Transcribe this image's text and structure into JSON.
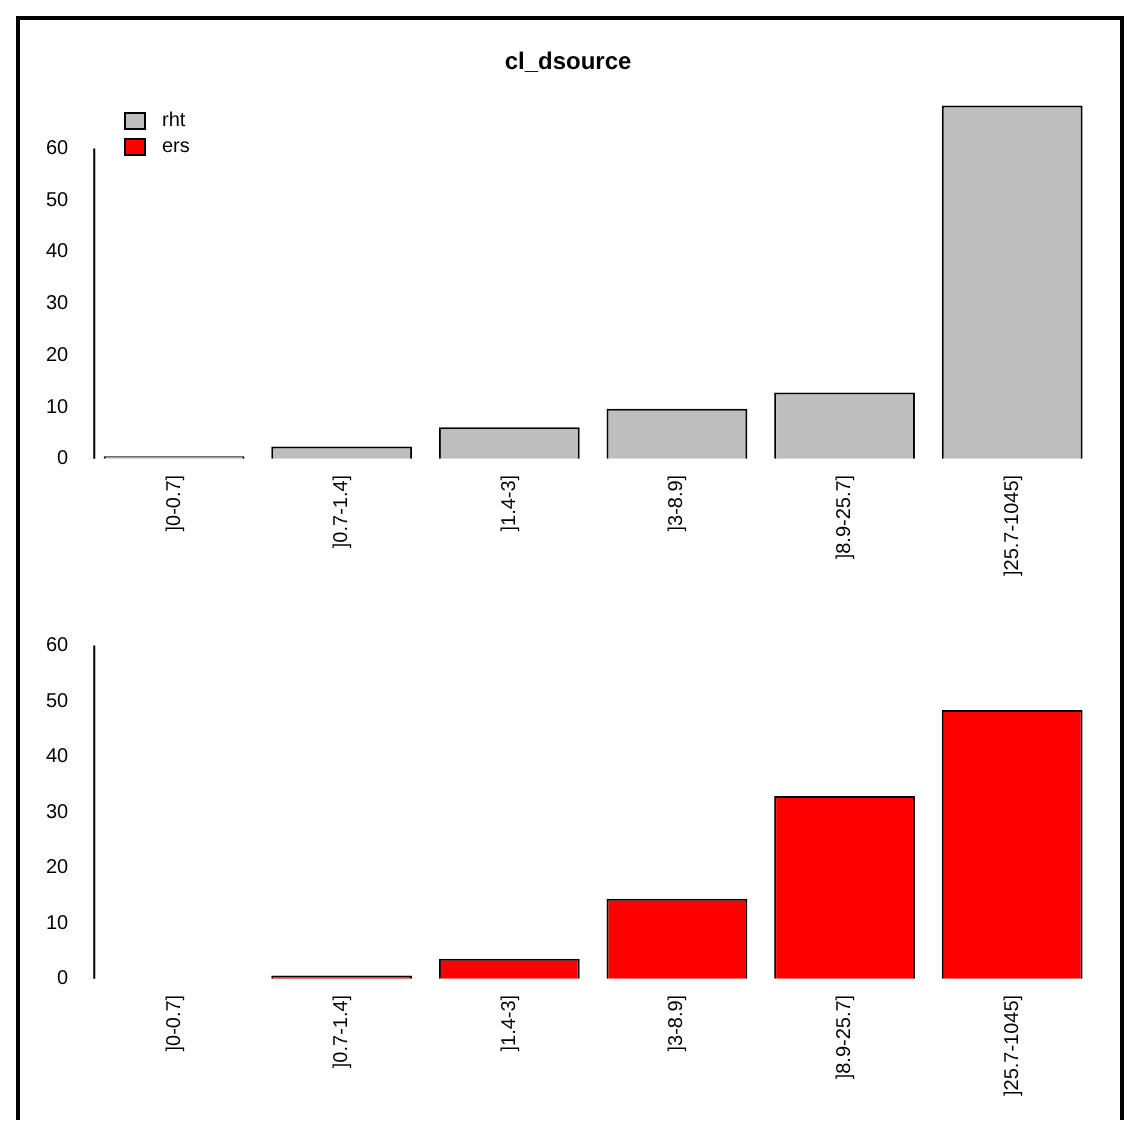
{
  "chart_data": [
    {
      "type": "bar",
      "title": "cl_dsource",
      "categories": [
        "]0-0.7]",
        "]0.7-1.4]",
        "]1.4-3]",
        "]3-8.9]",
        "]8.9-25.7]",
        "]25.7-1045]"
      ],
      "series": [
        {
          "name": "rht",
          "color": "#bebebe",
          "values": [
            0.5,
            2.4,
            6.1,
            9.7,
            12.8,
            68.3
          ]
        }
      ],
      "ylim": [
        0,
        70
      ],
      "yticks": [
        0,
        10,
        20,
        30,
        40,
        50,
        60
      ],
      "legend": "top left",
      "grid": false
    },
    {
      "type": "bar",
      "categories": [
        "]0-0.7]",
        "]0.7-1.4]",
        "]1.4-3]",
        "]3-8.9]",
        "]8.9-25.7]",
        "]25.7-1045]"
      ],
      "series": [
        {
          "name": "ers",
          "color": "#ff0000",
          "values": [
            0,
            0.6,
            3.6,
            14.4,
            32.9,
            48.4
          ]
        }
      ],
      "ylim": [
        0,
        61
      ],
      "yticks": [
        0,
        10,
        20,
        30,
        40,
        50,
        60
      ],
      "grid": false
    }
  ]
}
